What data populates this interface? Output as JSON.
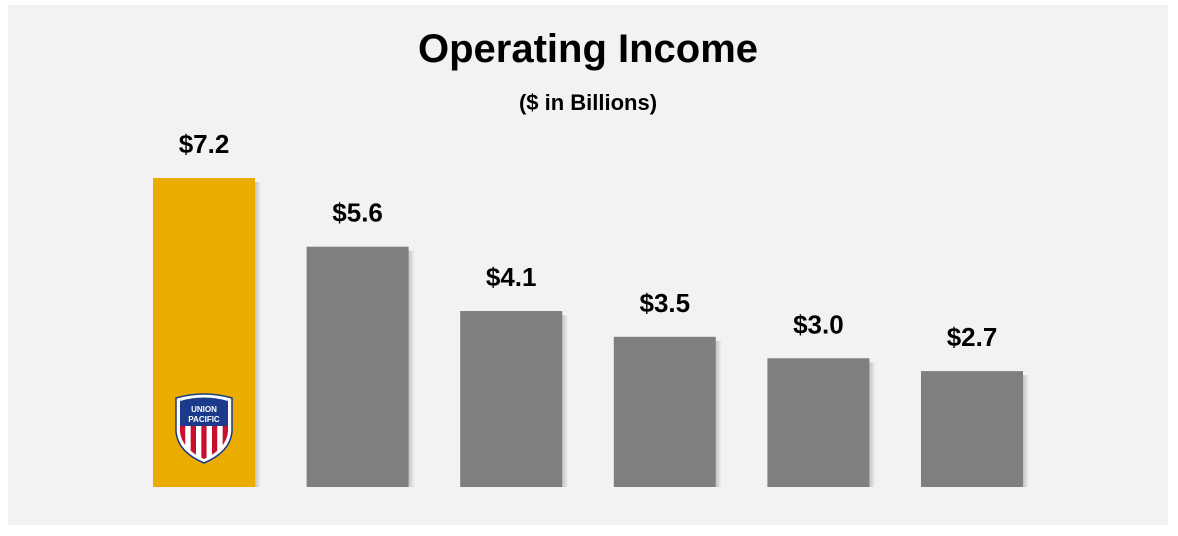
{
  "chart_data": {
    "type": "bar",
    "title": "Operating Income",
    "subtitle": "($ in Billions)",
    "categories": [
      "",
      "",
      "",
      "",
      "",
      ""
    ],
    "values": [
      7.2,
      5.6,
      4.1,
      3.5,
      3.0,
      2.7
    ],
    "data_labels": [
      "$7.2",
      "$5.6",
      "$4.1",
      "$3.5",
      "$3.0",
      "$2.7"
    ],
    "highlight_index": 0,
    "colors": {
      "highlight": "#ebac00",
      "default": "#7f7f7f",
      "background": "#f2f2f2",
      "shadow": "#c8c8c8"
    },
    "logo": {
      "name": "union-pacific-shield-logo",
      "text_line1": "UNION",
      "text_line2": "PACIFIC"
    },
    "ylim": [
      0,
      7.2
    ],
    "grid": false,
    "legend": "none",
    "xlabel": "",
    "ylabel": ""
  }
}
